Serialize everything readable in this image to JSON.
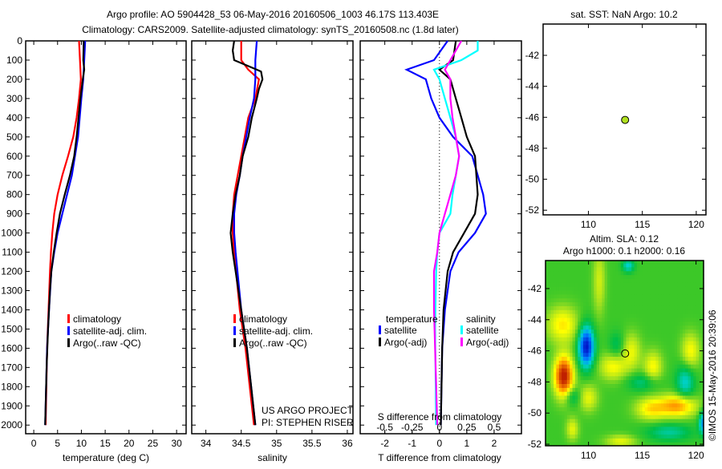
{
  "title": {
    "line1": "Argo profile: AO 5904428_53 06-May-2016 20160506_1003 46.17S 113.403E",
    "line2": "Climatology: CARS2009. Satellite-adjusted climatology: synTS_20160508.nc (1.8d later)"
  },
  "copyright": "©IMOS 15-May-2016 20:39:06",
  "colors": {
    "climatology": "#ff0000",
    "satellite": "#0000ff",
    "argo": "#000000",
    "sal_satellite": "#00ffff",
    "sal_argo": "#ff00ff"
  },
  "chart_data": [
    {
      "type": "line",
      "id": "temperature",
      "xlabel": "temperature (deg C)",
      "xlim": [
        -1.7,
        32
      ],
      "ylim": [
        0,
        2045
      ],
      "xticks": [
        0,
        5,
        10,
        15,
        20,
        25,
        30
      ],
      "yticks": [
        0,
        100,
        200,
        300,
        400,
        500,
        600,
        700,
        800,
        900,
        1000,
        1100,
        1200,
        1300,
        1400,
        1500,
        1600,
        1700,
        1800,
        1900,
        2000
      ],
      "legend": [
        "climatology",
        "satellite-adj. clim.",
        "Argo(..raw -QC)"
      ],
      "series": [
        {
          "name": "climatology",
          "color": "#ff0000",
          "depth": [
            0,
            100,
            200,
            300,
            400,
            500,
            600,
            700,
            800,
            900,
            1000,
            1100,
            1200,
            1400,
            1600,
            2000
          ],
          "values": [
            9.5,
            9.7,
            9.9,
            9.5,
            9.0,
            8.3,
            7.2,
            6.0,
            5.0,
            4.3,
            3.9,
            3.6,
            3.4,
            3.1,
            2.8,
            2.5
          ]
        },
        {
          "name": "satellite-adj. clim.",
          "color": "#0000ff",
          "depth": [
            0,
            100,
            200,
            300,
            500,
            700,
            800,
            900,
            1000,
            1100,
            1200,
            1400,
            1600,
            2000
          ],
          "values": [
            10.8,
            10.6,
            10.4,
            10.0,
            9.3,
            8.0,
            7.0,
            6.0,
            5.0,
            4.3,
            3.7,
            3.2,
            2.8,
            2.4
          ]
        },
        {
          "name": "Argo(..raw -QC)",
          "color": "#000000",
          "depth": [
            0,
            100,
            150,
            200,
            300,
            400,
            500,
            600,
            700,
            800,
            900,
            1000,
            1100,
            1200,
            1300,
            1400,
            1500,
            1700,
            2000
          ],
          "values": [
            10.5,
            10.4,
            10.6,
            10.3,
            9.8,
            9.4,
            9.0,
            8.5,
            7.6,
            6.5,
            5.5,
            4.8,
            4.2,
            3.7,
            3.4,
            3.2,
            3.0,
            2.7,
            2.4
          ]
        }
      ]
    },
    {
      "type": "line",
      "id": "salinity",
      "xlabel": "salinity",
      "xlim": [
        33.8,
        36.08
      ],
      "ylim": [
        0,
        2045
      ],
      "xticks": [
        34,
        34.5,
        35,
        35.5,
        36
      ],
      "legend": [
        "climatology",
        "satellite-adj. clim.",
        "Argo(..raw -QC)"
      ],
      "annotation": [
        "US ARGO PROJECT",
        "PI: STEPHEN RISER"
      ],
      "series": [
        {
          "name": "climatology",
          "color": "#ff0000",
          "depth": [
            0,
            100,
            150,
            200,
            300,
            400,
            500,
            600,
            700,
            800,
            900,
            1000,
            1100,
            1400,
            1600,
            2000
          ],
          "values": [
            34.5,
            34.5,
            34.6,
            34.75,
            34.7,
            34.6,
            34.55,
            34.5,
            34.45,
            34.4,
            34.38,
            34.38,
            34.4,
            34.48,
            34.56,
            34.68
          ]
        },
        {
          "name": "satellite-adj. clim.",
          "color": "#0000ff",
          "depth": [
            0,
            100,
            200,
            300,
            400,
            500,
            600,
            700,
            800,
            900,
            1000,
            1100,
            1400,
            1600,
            2000
          ],
          "values": [
            34.72,
            34.7,
            34.7,
            34.68,
            34.62,
            34.57,
            34.52,
            34.48,
            34.43,
            34.4,
            34.4,
            34.42,
            34.5,
            34.58,
            34.7
          ]
        },
        {
          "name": "Argo(..raw -QC)",
          "color": "#000000",
          "depth": [
            0,
            50,
            100,
            150,
            160,
            200,
            250,
            300,
            400,
            500,
            600,
            700,
            800,
            900,
            1000,
            1100,
            1200,
            1400,
            1600,
            1800,
            2000
          ],
          "values": [
            34.4,
            34.38,
            34.4,
            34.72,
            34.78,
            34.8,
            34.75,
            34.72,
            34.65,
            34.6,
            34.52,
            34.48,
            34.42,
            34.38,
            34.35,
            34.38,
            34.42,
            34.5,
            34.58,
            34.64,
            34.7
          ]
        }
      ]
    },
    {
      "type": "line",
      "id": "differences",
      "xlabel": "T difference from climatology",
      "x2label": "S difference from climatology",
      "xlim": [
        -2.9,
        3.0
      ],
      "x2lim": [
        -0.725,
        0.75
      ],
      "ylim": [
        0,
        2045
      ],
      "xticks": [
        -2,
        -1,
        0,
        1,
        2
      ],
      "x2ticks": [
        -0.5,
        -0.25,
        0,
        0.25,
        0.5
      ],
      "x2ticklabels": [
        "-0.5",
        "-0.25",
        "0",
        "0.25",
        "0.5"
      ],
      "legend_headers": [
        "temperature",
        "salinity"
      ],
      "legend_temperature": [
        "satellite",
        "Argo(-adj)"
      ],
      "legend_salinity": [
        "satellite",
        "Argo(-adj)"
      ],
      "series": [
        {
          "name": "T satellite",
          "axis": "T",
          "color": "#0000ff",
          "depth": [
            0,
            100,
            150,
            200,
            300,
            400,
            500,
            600,
            700,
            800,
            900,
            1000,
            1100,
            1200,
            1400,
            1600,
            2000
          ],
          "values": [
            0.3,
            -0.2,
            -1.2,
            -0.5,
            -0.3,
            0,
            0.5,
            1.2,
            1.4,
            1.6,
            1.7,
            1.3,
            0.7,
            0.4,
            0.2,
            0.1,
            0.05
          ]
        },
        {
          "name": "T Argo(-adj)",
          "axis": "T",
          "color": "#000000",
          "depth": [
            0,
            100,
            150,
            200,
            300,
            400,
            500,
            600,
            700,
            800,
            900,
            1000,
            1100,
            1200,
            1400,
            1600,
            2000
          ],
          "values": [
            0.6,
            0.5,
            0,
            0.4,
            0.6,
            0.8,
            1.0,
            1.3,
            1.35,
            1.4,
            1.3,
            0.9,
            0.5,
            0.3,
            0.15,
            0.1,
            0.05
          ]
        },
        {
          "name": "S satellite",
          "axis": "S",
          "color": "#00ffff",
          "depth": [
            0,
            50,
            100,
            150,
            200,
            300,
            400,
            500,
            600,
            700,
            800,
            900,
            1000,
            1100,
            1200,
            1500,
            2000
          ],
          "values": [
            0.35,
            0.35,
            0.2,
            -0.05,
            0,
            0.05,
            0.1,
            0.15,
            0.18,
            0.15,
            0.12,
            0.1,
            0,
            -0.02,
            -0.03,
            -0.04,
            -0.03
          ]
        },
        {
          "name": "S Argo(-adj)",
          "axis": "S",
          "color": "#ff00ff",
          "depth": [
            0,
            100,
            150,
            200,
            300,
            400,
            500,
            600,
            700,
            800,
            900,
            1000,
            1100,
            1200,
            1400,
            2000
          ],
          "values": [
            0.2,
            0.1,
            0.05,
            0.1,
            0.1,
            0.12,
            0.15,
            0.18,
            0.15,
            0.1,
            0.05,
            0,
            -0.02,
            -0.05,
            -0.05,
            -0.02
          ]
        }
      ]
    },
    {
      "type": "scatter",
      "id": "sst-map",
      "title": "sat. SST: NaN Argo: 10.2",
      "xlim": [
        105.8,
        120.9
      ],
      "ylim": [
        -52.3,
        -39.98
      ],
      "xticks": [
        110,
        115,
        120
      ],
      "yticks": [
        -42,
        -44,
        -46,
        -48,
        -50,
        -52
      ],
      "points": [
        {
          "lon": 113.403,
          "lat": -46.17,
          "color": "#b0e020"
        }
      ]
    },
    {
      "type": "heatmap",
      "id": "sla-map",
      "title_line1": "Altim. SLA: 0.12",
      "title_line2": "Argo h1000: 0.1 h2000: 0.16",
      "xlim": [
        106,
        120.7
      ],
      "ylim": [
        -52.1,
        -40.2
      ],
      "xticks": [
        110,
        115,
        120
      ],
      "yticks": [
        -42,
        -44,
        -46,
        -48,
        -50,
        -52
      ],
      "baseline": 0.05,
      "blobs": [
        [
          109.8,
          -45.7,
          -1.0,
          0.5,
          0.9
        ],
        [
          107.7,
          -47.6,
          1.0,
          0.6,
          0.9
        ],
        [
          107.6,
          -44.3,
          0.4,
          1.0,
          0.8
        ],
        [
          112.3,
          -47.0,
          0.35,
          0.9,
          0.6
        ],
        [
          114.0,
          -46.0,
          0.3,
          0.6,
          0.8
        ],
        [
          116.0,
          -47.0,
          0.35,
          0.6,
          0.7
        ],
        [
          118.3,
          -49.5,
          0.6,
          1.2,
          0.5
        ],
        [
          115.8,
          -49.7,
          0.4,
          1.0,
          0.5
        ],
        [
          119.5,
          -46.0,
          0.35,
          0.6,
          0.8
        ],
        [
          119.0,
          -48.0,
          -0.4,
          0.6,
          0.8
        ],
        [
          113.7,
          -40.5,
          -0.4,
          0.4,
          0.3
        ],
        [
          115.0,
          -48.0,
          -0.25,
          1.0,
          0.4
        ],
        [
          110.0,
          -49.0,
          0.3,
          0.6,
          0.6
        ],
        [
          120.7,
          -50.6,
          -0.6,
          0.3,
          0.5
        ],
        [
          113.0,
          -51.8,
          0.3,
          1.0,
          0.3
        ],
        [
          108.5,
          -51.0,
          0.3,
          0.4,
          0.5
        ],
        [
          117.5,
          -51.2,
          -0.3,
          1.5,
          0.4
        ],
        [
          111.0,
          -41.5,
          0.25,
          0.4,
          1.5
        ],
        [
          108.5,
          -48.9,
          -0.25,
          0.5,
          0.4
        ],
        [
          112.6,
          -45.6,
          -0.2,
          0.5,
          0.6
        ]
      ],
      "points": [
        {
          "lon": 113.403,
          "lat": -46.17
        }
      ]
    }
  ]
}
